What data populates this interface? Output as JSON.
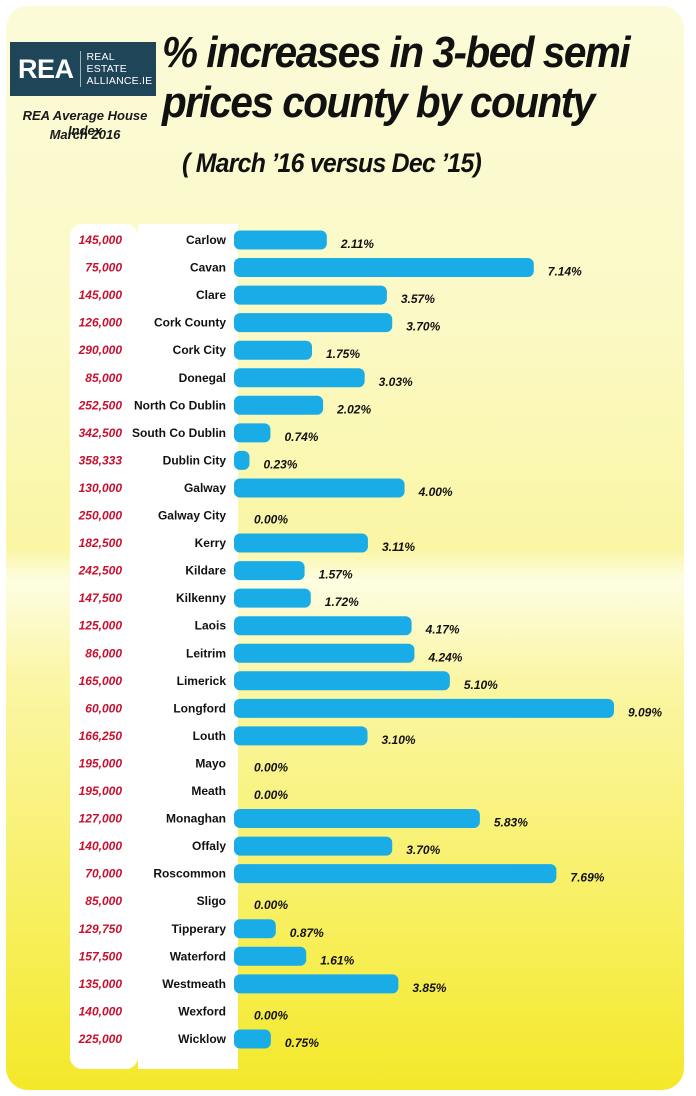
{
  "logo": {
    "main": "REA",
    "sub_line1": "REAL ESTATE",
    "sub_line2": "ALLIANCE.IE"
  },
  "index_title": "REA Average House Index",
  "index_date": "March 2016",
  "title_line1": "% increases  in 3-bed semi",
  "title_line2": "prices county by county",
  "subtitle": "( March ’16 versus Dec ’15)",
  "colors": {
    "bar": "#1aace6",
    "price_text": "#c8102e",
    "background_top": "#fbfbd9",
    "background_bottom": "#f4e829"
  },
  "chart_data": {
    "type": "bar",
    "orientation": "horizontal",
    "title": "% increases  in 3-bed semi prices county by county",
    "subtitle": "( March ’16 versus Dec ’15)",
    "xlim": [
      0,
      9.09
    ],
    "categories": [
      "Carlow",
      "Cavan",
      "Clare",
      "Cork County",
      "Cork City",
      "Donegal",
      "North Co Dublin",
      "South Co Dublin",
      "Dublin City",
      "Galway",
      "Galway City",
      "Kerry",
      "Kildare",
      "Kilkenny",
      "Laois",
      "Leitrim",
      "Limerick",
      "Longford",
      "Louth",
      "Mayo",
      "Meath",
      "Monaghan",
      "Offaly",
      "Roscommon",
      "Sligo",
      "Tipperary",
      "Waterford",
      "Westmeath",
      "Wexford",
      "Wicklow"
    ],
    "prices": [
      "145,000",
      "75,000",
      "145,000",
      "126,000",
      "290,000",
      "85,000",
      "252,500",
      "342,500",
      "358,333",
      "130,000",
      "250,000",
      "182,500",
      "242,500",
      "147,500",
      "125,000",
      "86,000",
      "165,000",
      "60,000",
      "166,250",
      "195,000",
      "195,000",
      "127,000",
      "140,000",
      "70,000",
      "85,000",
      "129,750",
      "157,500",
      "135,000",
      "140,000",
      "225,000"
    ],
    "values": [
      2.11,
      7.14,
      3.57,
      3.7,
      1.75,
      3.03,
      2.02,
      0.74,
      0.23,
      4.0,
      0.0,
      3.11,
      1.57,
      1.72,
      4.17,
      4.24,
      5.1,
      9.09,
      3.1,
      0.0,
      0.0,
      5.83,
      3.7,
      7.69,
      0.0,
      0.87,
      1.61,
      3.85,
      0.0,
      0.75
    ],
    "value_labels": [
      "2.11%",
      "7.14%",
      "3.57%",
      "3.70%",
      "1.75%",
      "3.03%",
      "2.02%",
      "0.74%",
      "0.23%",
      "4.00%",
      "0.00%",
      "3.11%",
      "1.57%",
      "1.72%",
      "4.17%",
      "4.24%",
      "5.10%",
      "9.09%",
      "3.10%",
      "0.00%",
      "0.00%",
      "5.83%",
      "3.70%",
      "7.69%",
      "0.00%",
      "0.87%",
      "1.61%",
      "3.85%",
      "0.00%",
      "0.75%"
    ]
  }
}
